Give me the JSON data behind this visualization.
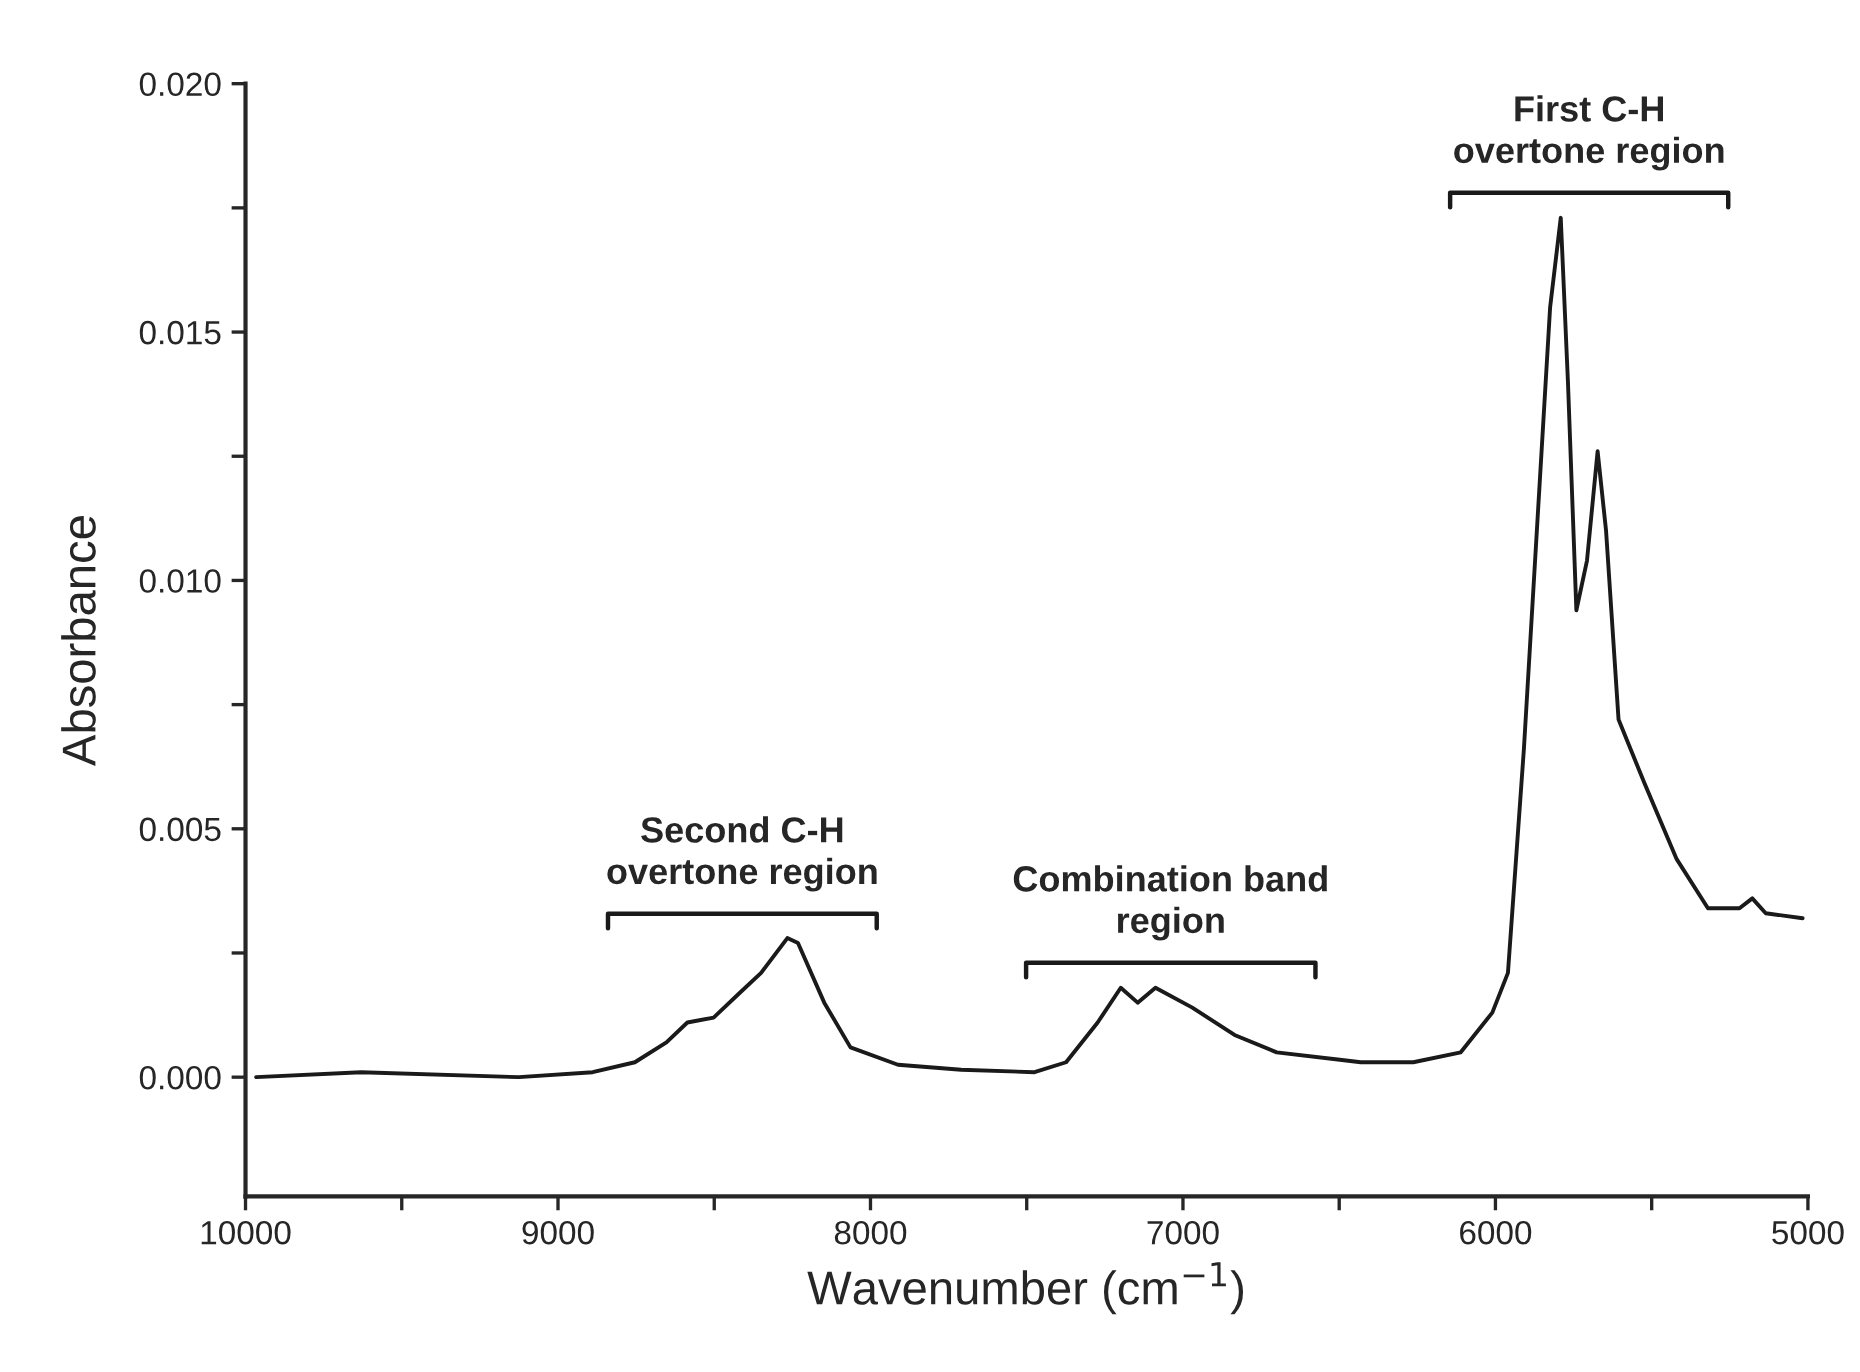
{
  "chart_data": {
    "type": "line",
    "xlabel": "Wavenumber (cm$^{−1}$)",
    "ylabel": "Absorbance",
    "x": [
      9966,
      9630,
      9125,
      8889,
      8754,
      8653,
      8586,
      8502,
      8418,
      8350,
      8266,
      8232,
      8148,
      8064,
      7912,
      7710,
      7475,
      7374,
      7273,
      7199,
      7145,
      7088,
      6970,
      6835,
      6700,
      6498,
      6431,
      6263,
      6111,
      6010,
      5960,
      5909,
      5859,
      5825,
      5791,
      5768,
      5741,
      5707,
      5673,
      5646,
      5606,
      5522,
      5421,
      5320,
      5219,
      5178,
      5135,
      5017
    ],
    "series": [
      {
        "color": "#1a1a1a",
        "values": [
          0.0,
          0.0001,
          0.0,
          0.0001,
          0.0003,
          0.0007,
          0.0011,
          0.0012,
          0.0017,
          0.0021,
          0.0028,
          0.0027,
          0.0015,
          0.0006,
          0.00025,
          0.00015,
          0.0001,
          0.0003,
          0.0011,
          0.0018,
          0.0015,
          0.0018,
          0.0014,
          0.00085,
          0.0005,
          0.00035,
          0.0003,
          0.0003,
          0.0005,
          0.0013,
          0.0021,
          0.0066,
          0.0119,
          0.0155,
          0.0173,
          0.014,
          0.0094,
          0.0104,
          0.0126,
          0.011,
          0.0072,
          0.0059,
          0.0044,
          0.0034,
          0.0034,
          0.0036,
          0.0033,
          0.0032
        ]
      }
    ],
    "xlim": [
      10000,
      5000
    ],
    "ylim": [
      -0.0024,
      0.02
    ],
    "xticks": [
      10000,
      {
        "value": 9500,
        "label": null
      },
      9000,
      {
        "value": 8500,
        "label": null
      },
      8000,
      {
        "value": 7500,
        "label": null
      },
      7000,
      {
        "value": 6500,
        "label": null
      },
      6000,
      {
        "value": 5500,
        "label": null
      },
      5000
    ],
    "yticks": [
      {
        "value": 0.0,
        "label": "0.000"
      },
      {
        "value": 0.0025,
        "label": null
      },
      {
        "value": 0.005,
        "label": "0.005"
      },
      {
        "value": 0.0075,
        "label": null
      },
      {
        "value": 0.01,
        "label": "0.010"
      },
      {
        "value": 0.0125,
        "label": null
      },
      {
        "value": 0.015,
        "label": "0.015"
      },
      {
        "value": 0.0175,
        "label": null
      },
      {
        "value": 0.02,
        "label": "0.020"
      }
    ],
    "annotations": [
      "Second C-H\novertone region",
      "Combination band\nregion",
      "First C-H\novertone region"
    ],
    "grid": false,
    "legend": false,
    "marker": "none",
    "line_style": "solid"
  }
}
